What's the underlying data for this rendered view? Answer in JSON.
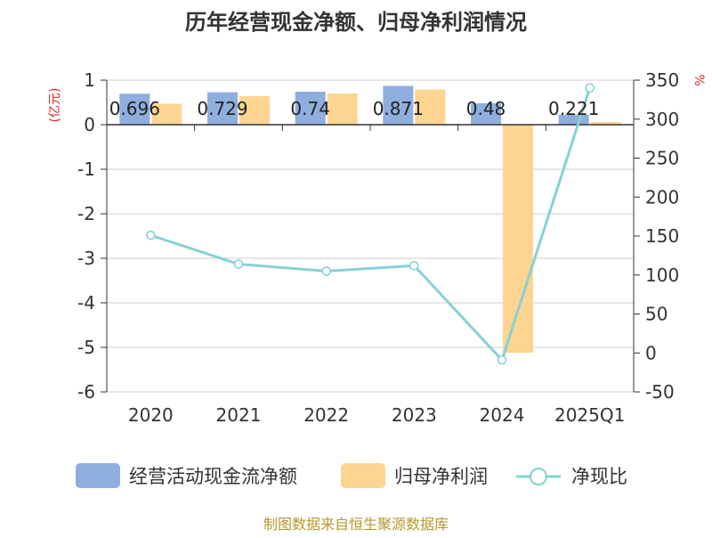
{
  "chart_data": {
    "type": "bar+line",
    "title": "历年经营现金净额、归母净利润情况",
    "left_axis_label": "(亿元)",
    "right_axis_label": "%",
    "categories": [
      "2020",
      "2021",
      "2022",
      "2023",
      "2024",
      "2025Q1"
    ],
    "left_ylim": [
      -6,
      1
    ],
    "left_ticks": [
      1,
      0,
      -1,
      -2,
      -3,
      -4,
      -5,
      -6
    ],
    "right_ylim": [
      -50,
      350
    ],
    "right_ticks": [
      350,
      300,
      250,
      200,
      150,
      100,
      50,
      0,
      -50
    ],
    "series": [
      {
        "name": "经营活动现金流净额",
        "kind": "bar",
        "axis": "left",
        "color": "#8eaedd",
        "values": [
          0.696,
          0.729,
          0.74,
          0.871,
          0.48,
          0.221
        ],
        "labels": [
          "0.696",
          "0.729",
          "0.74",
          "0.871",
          "0.48",
          "0.221"
        ]
      },
      {
        "name": "归母净利润",
        "kind": "bar",
        "axis": "right-of-pair",
        "color": "#fdd590",
        "values": [
          0.47,
          0.64,
          0.7,
          0.79,
          -5.12,
          0.06
        ]
      },
      {
        "name": "净现比",
        "kind": "line",
        "axis": "right",
        "color": "#86d1d6",
        "values": [
          151,
          114,
          105,
          112,
          -9,
          340
        ]
      }
    ],
    "legend": [
      "经营活动现金流净额",
      "归母净利润",
      "净现比"
    ],
    "source": "制图数据来自恒生聚源数据库"
  }
}
